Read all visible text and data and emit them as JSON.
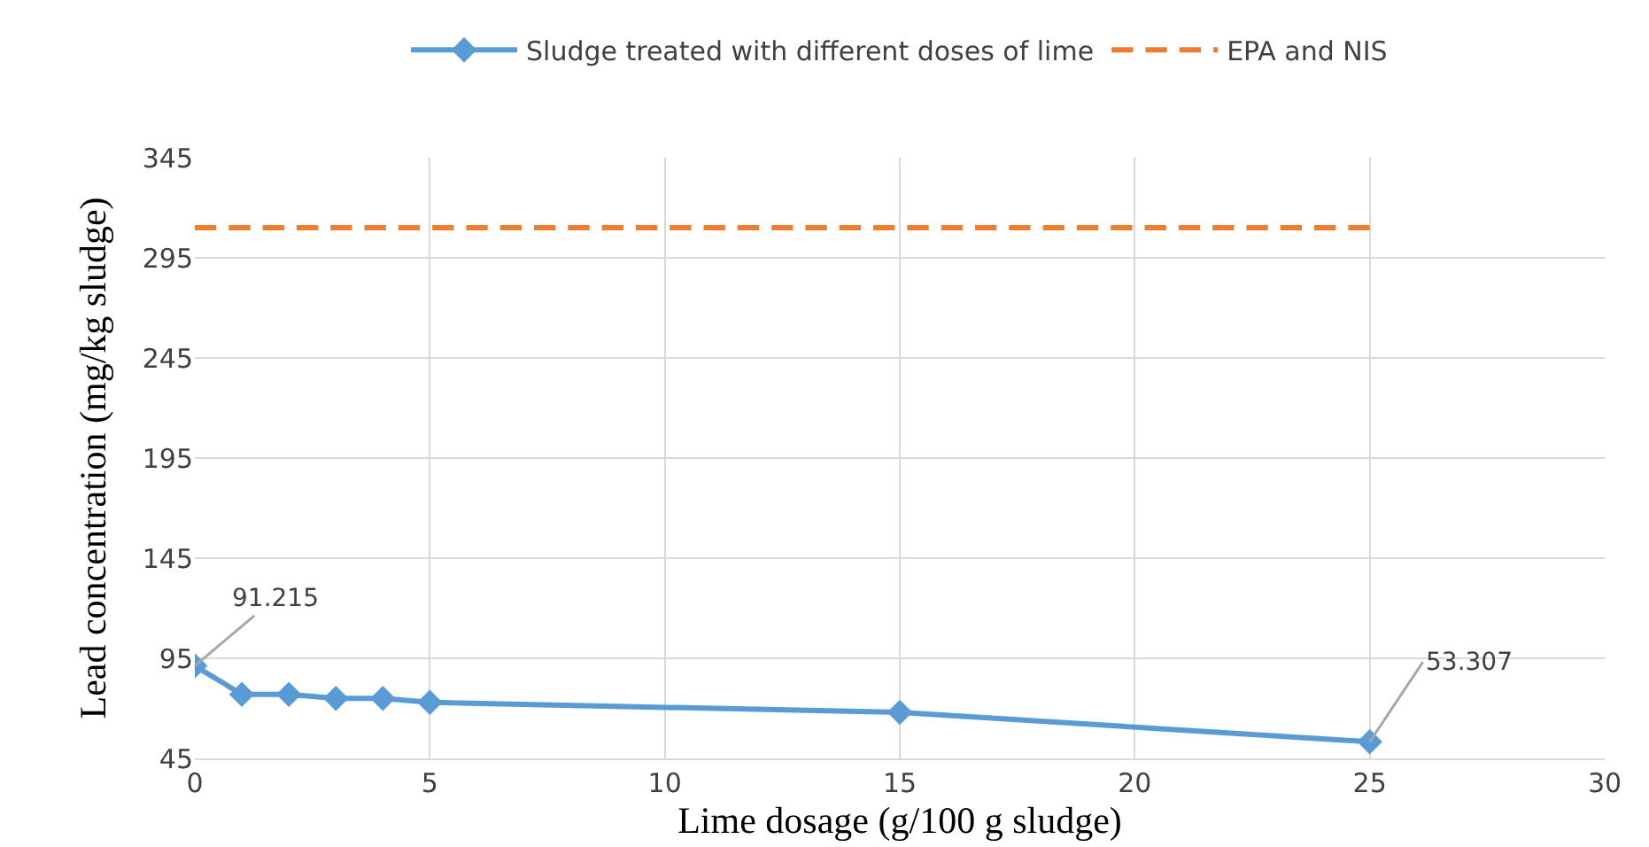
{
  "chart_data": {
    "type": "line",
    "xlabel": "Lime dosage (g/100 g sludge)",
    "ylabel": "Lead concentration (mg/kg sludge)",
    "xlim": [
      0,
      30
    ],
    "xticks": [
      0,
      5,
      10,
      15,
      20,
      25,
      30
    ],
    "ylim": [
      45,
      345
    ],
    "yticks": [
      45,
      95,
      145,
      195,
      245,
      295,
      345
    ],
    "grid": true,
    "legend": "top",
    "series": [
      {
        "name": "Sludge treated with different doses of lime",
        "color": "#5b9bd5",
        "marker": "diamond",
        "line_style": "solid",
        "x": [
          0,
          1,
          2,
          3,
          4,
          5,
          15,
          25
        ],
        "values": [
          91.215,
          77,
          77,
          75,
          75,
          73,
          68,
          53.307
        ],
        "value_labels": [
          "91.215",
          null,
          null,
          null,
          null,
          null,
          null,
          "53.307"
        ]
      },
      {
        "name": "EPA and NIS",
        "color": "#ed7d31",
        "marker": "none",
        "line_style": "dashed",
        "x": [
          0,
          25
        ],
        "values": [
          310,
          310
        ]
      }
    ]
  }
}
